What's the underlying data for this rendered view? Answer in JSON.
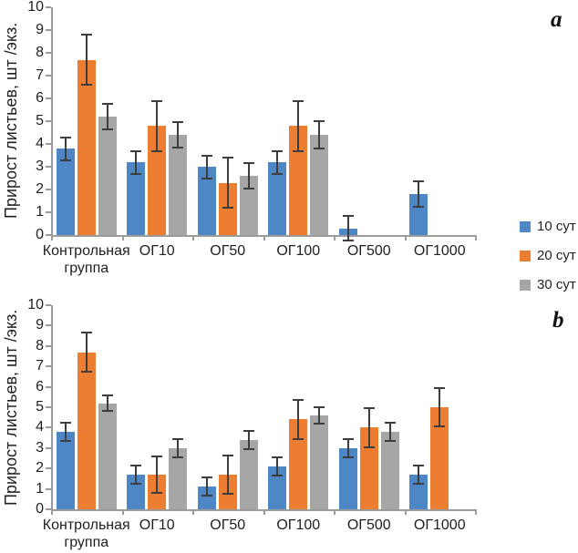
{
  "figure": {
    "panel_a_label": "a",
    "panel_b_label": "b"
  },
  "legend": {
    "position": "right",
    "items": [
      {
        "label": "10 сут",
        "color": "#4d87c5"
      },
      {
        "label": "20 сут",
        "color": "#ed7d31"
      },
      {
        "label": "30 сут",
        "color": "#a6a6a6"
      }
    ]
  },
  "colors": {
    "axis": "#9b9b9b",
    "error_bar": "#3d3d3d",
    "text": "#1f1f1f"
  },
  "chart_data": [
    {
      "id": "a",
      "panel_label": "a",
      "type": "bar",
      "title": "",
      "xlabel": "",
      "ylabel": "Прирост листьев, шт /экз.",
      "ylim": [
        0,
        10
      ],
      "ytick_step": 1,
      "grid": false,
      "legend_position": "right",
      "categories": [
        "Контрольная группа",
        "ОГ10",
        "ОГ50",
        "ОГ100",
        "ОГ500",
        "ОГ1000"
      ],
      "series": [
        {
          "name": "10 сут",
          "color": "#4d87c5",
          "values": [
            3.8,
            3.2,
            3.0,
            3.2,
            0.3,
            1.8
          ],
          "errors": [
            0.5,
            0.5,
            0.5,
            0.5,
            0.55,
            0.55
          ]
        },
        {
          "name": "20 сут",
          "color": "#ed7d31",
          "values": [
            7.7,
            4.8,
            2.3,
            4.8,
            0,
            0
          ],
          "errors": [
            1.1,
            1.1,
            1.1,
            1.1,
            0,
            0
          ]
        },
        {
          "name": "30 сут",
          "color": "#a6a6a6",
          "values": [
            5.2,
            4.4,
            2.6,
            4.4,
            0,
            0
          ],
          "errors": [
            0.55,
            0.55,
            0.55,
            0.6,
            0,
            0
          ]
        }
      ]
    },
    {
      "id": "b",
      "panel_label": "b",
      "type": "bar",
      "title": "",
      "xlabel": "",
      "ylabel": "Прирост листьев, шт /экз.",
      "ylim": [
        0,
        10
      ],
      "ytick_step": 1,
      "grid": false,
      "legend_position": "right",
      "categories": [
        "Контрольная группа",
        "ОГ10",
        "ОГ50",
        "ОГ100",
        "ОГ500",
        "ОГ1000"
      ],
      "series": [
        {
          "name": "10 сут",
          "color": "#4d87c5",
          "values": [
            3.8,
            1.7,
            1.1,
            2.1,
            3.0,
            1.7
          ],
          "errors": [
            0.45,
            0.45,
            0.45,
            0.45,
            0.45,
            0.45
          ]
        },
        {
          "name": "20 сут",
          "color": "#ed7d31",
          "values": [
            7.7,
            1.7,
            1.7,
            4.4,
            4.0,
            5.0
          ],
          "errors": [
            0.95,
            0.9,
            0.95,
            0.95,
            0.95,
            0.95
          ]
        },
        {
          "name": "30 сут",
          "color": "#a6a6a6",
          "values": [
            5.2,
            3.0,
            3.4,
            4.6,
            3.8,
            0
          ],
          "errors": [
            0.4,
            0.45,
            0.45,
            0.4,
            0.45,
            0
          ]
        }
      ]
    }
  ]
}
